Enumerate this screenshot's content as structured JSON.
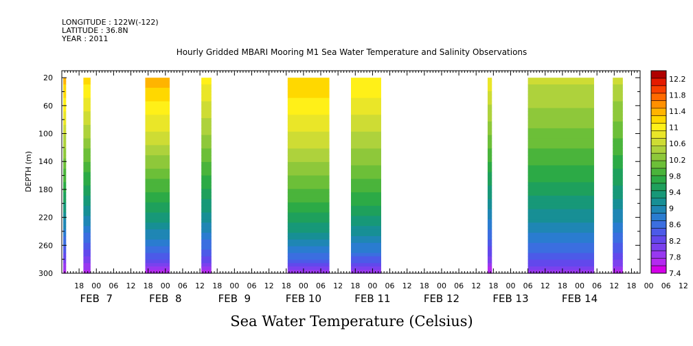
{
  "header": {
    "longitude": "LONGITUDE : 122W(-122)",
    "latitude": "LATITUDE : 36.8N",
    "year": "YEAR : 2011",
    "title": "Hourly Gridded MBARI Mooring M1 Sea Water Temperature and Salinity Observations",
    "bottom_label": "Sea Water Temperature (Celsius)"
  },
  "chart_data": {
    "type": "heatmap",
    "title": "Hourly Gridded MBARI Mooring M1 Sea Water Temperature and Salinity Observations",
    "xlabel": "",
    "ylabel": "DEPTH (m)",
    "y_axis": {
      "range": [
        10,
        300
      ],
      "inverted": true,
      "ticks": [
        20,
        60,
        100,
        140,
        180,
        220,
        260,
        300
      ]
    },
    "x_axis": {
      "unit": "hours since FEB 6 12:00",
      "range": [
        0,
        201
      ],
      "hour_ticks": [
        "18",
        "00",
        "06",
        "12",
        "18",
        "00",
        "06",
        "12",
        "18",
        "00",
        "06",
        "12",
        "18",
        "00",
        "06",
        "12",
        "18",
        "00",
        "06",
        "12",
        "18",
        "00",
        "06",
        "12",
        "18",
        "00",
        "06",
        "12",
        "18",
        "00",
        "06",
        "12",
        "18",
        "00",
        "06",
        "12"
      ],
      "date_labels": [
        "FEB  7",
        "FEB  8",
        "FEB  9",
        "FEB 10",
        "FEB 11",
        "FEB 12",
        "FEB 13",
        "FEB 14"
      ]
    },
    "colorbar": {
      "colors": [
        "#d400e8",
        "#b42af0",
        "#9838f0",
        "#7b41ee",
        "#6248ec",
        "#4c5ae8",
        "#3b6ee0",
        "#2a7cd0",
        "#1f86b4",
        "#178f95",
        "#179878",
        "#1ea05c",
        "#2caa46",
        "#4ab43b",
        "#6cbf38",
        "#8ec83a",
        "#aed23c",
        "#cedc34",
        "#eae628",
        "#fff018",
        "#ffd800",
        "#ffb400",
        "#ff9000",
        "#ff6a00",
        "#f84000",
        "#e41a00",
        "#b00000"
      ],
      "tick_labels": [
        "7.4",
        "7.8",
        "8.2",
        "8.6",
        "9",
        "9.4",
        "9.8",
        "10.2",
        "10.6",
        "11",
        "11.4",
        "11.8",
        "12.2"
      ],
      "range": [
        7.4,
        12.4
      ]
    },
    "data_segments": [
      {
        "start_hour": 0.5,
        "end_hour": 1.5,
        "surface_temp": 11.4,
        "thermocline": 0.7
      },
      {
        "start_hour": 7.5,
        "end_hour": 10.0,
        "surface_temp": 11.2,
        "thermocline": 0.7
      },
      {
        "start_hour": 29.0,
        "end_hour": 37.5,
        "surface_temp": 11.4,
        "thermocline": 0.6
      },
      {
        "start_hour": 48.5,
        "end_hour": 52.0,
        "surface_temp": 11.0,
        "thermocline": 0.6
      },
      {
        "start_hour": 78.5,
        "end_hour": 93.0,
        "surface_temp": 11.3,
        "thermocline": 0.5
      },
      {
        "start_hour": 100.5,
        "end_hour": 111.0,
        "surface_temp": 11.1,
        "thermocline": 0.5
      },
      {
        "start_hour": 148.0,
        "end_hour": 149.5,
        "surface_temp": 10.9,
        "thermocline": 0.7
      },
      {
        "start_hour": 162.0,
        "end_hour": 185.0,
        "surface_temp": 10.6,
        "thermocline": 0.5
      },
      {
        "start_hour": 191.5,
        "end_hour": 195.0,
        "surface_temp": 10.6,
        "thermocline": 0.6
      }
    ],
    "bottom_temp": 7.5,
    "grid": false,
    "legend_placement": "right"
  }
}
